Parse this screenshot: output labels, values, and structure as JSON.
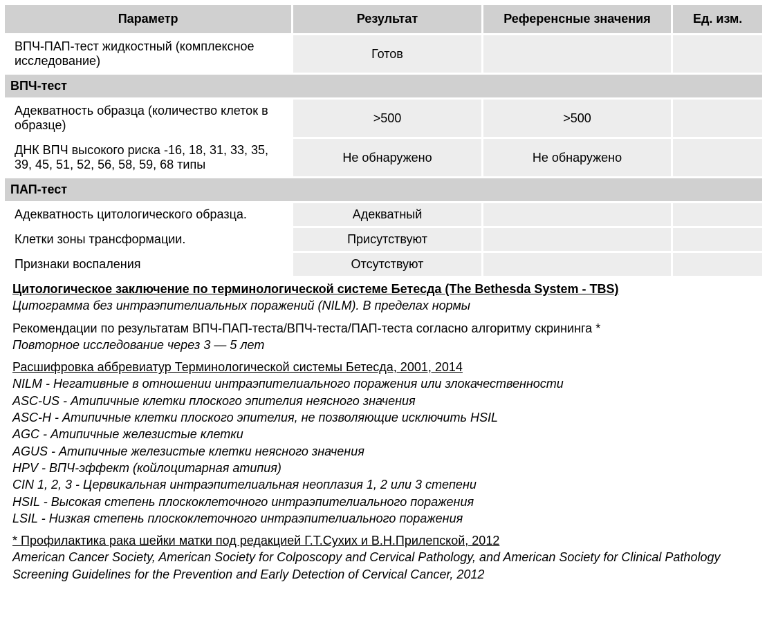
{
  "headers": {
    "param": "Параметр",
    "result": "Результат",
    "reference": "Референсные значения",
    "unit": "Ед. изм."
  },
  "rows": [
    {
      "type": "data",
      "param": "ВПЧ-ПАП-тест жидкостный (комплексное исследование)",
      "result": "Готов",
      "reference": "",
      "unit": ""
    },
    {
      "type": "section",
      "label": "ВПЧ-тест"
    },
    {
      "type": "data",
      "param": "Адекватность образца (количество клеток в образце)",
      "result": ">500",
      "reference": ">500",
      "unit": ""
    },
    {
      "type": "data",
      "param": "ДНК ВПЧ высокого риска -16, 18, 31, 33, 35, 39, 45, 51, 52, 56, 58, 59, 68 типы",
      "result": "Не обнаружено",
      "reference": "Не обнаружено",
      "unit": ""
    },
    {
      "type": "section",
      "label": "ПАП-тест"
    },
    {
      "type": "data",
      "param": "Адекватность цитологического образца.",
      "result": "Адекватный",
      "reference": "",
      "unit": ""
    },
    {
      "type": "data",
      "param": "Клетки зоны трансформации.",
      "result": "Присутствуют",
      "reference": "",
      "unit": ""
    },
    {
      "type": "data",
      "param": "Признаки воспаления",
      "result": "Отсутствуют",
      "reference": "",
      "unit": ""
    }
  ],
  "conclusion": {
    "title": "Цитологическое заключение по терминологической системе Бетесда (The Bethesda System - TBS)",
    "text": "Цитограмма без интраэпителиальных поражений (NILM). В пределах нормы"
  },
  "recommendations": {
    "title": "Рекомендации по результатам ВПЧ-ПАП-теста/ВПЧ-теста/ПАП-теста согласно алгоритму скрининга *",
    "text": "Повторное исследование через 3 — 5 лет"
  },
  "abbreviations": {
    "title": "Расшифровка аббревиатур Терминологической системы Бетесда, 2001, 2014",
    "items": [
      "NILM - Негативные в отношении интраэпителиального поражения или злокачественности",
      "ASC-US - Атипичные клетки плоского эпителия неясного значения",
      "ASC-H - Атипичные клетки плоского эпителия, не позволяющие исключить HSIL",
      "AGC - Атипичные железистые клетки",
      "AGUS - Атипичные железистые клетки неясного значения",
      "HPV - ВПЧ-эффект (койлоцитарная атипия)",
      "CIN 1, 2, 3 - Цервикальная интраэпителиальная неоплазия 1, 2 или 3 степени",
      "HSIL - Высокая степень плоскоклеточного интраэпителиального поражения",
      "LSIL - Низкая степень плоскоклеточного интраэпителиального поражения"
    ]
  },
  "footnote": {
    "line1": "* Профилактика рака шейки матки под редакцией Г.Т.Сухих и В.Н.Прилепской, 2012",
    "line2": "American Cancer Society, American Society for Colposcopy and Cervical Pathology, and American Society for Clinical Pathology Screening Guidelines for the Prevention and Early Detection of Cervical Cancer, 2012"
  },
  "style": {
    "header_bg": "#d0d0d0",
    "cell_bg": "#ededed",
    "border_color": "#ffffff",
    "font_size": 18,
    "text_color": "#000000"
  }
}
